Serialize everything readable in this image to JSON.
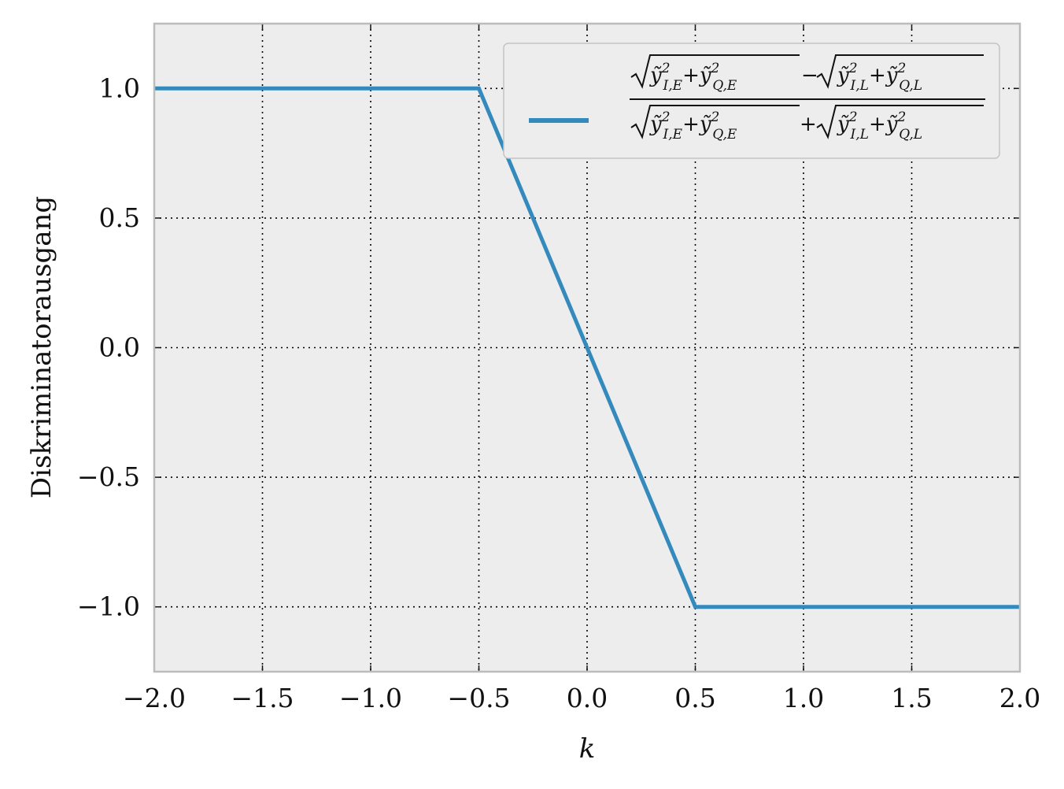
{
  "chart_data": {
    "type": "line",
    "title": "",
    "xlabel": "k",
    "ylabel": "Diskriminatorausgang",
    "xlim": [
      -2.0,
      2.0
    ],
    "ylim": [
      -1.25,
      1.25
    ],
    "xticks": [
      -2.0,
      -1.5,
      -1.0,
      -0.5,
      0.0,
      0.5,
      1.0,
      1.5,
      2.0
    ],
    "xtick_labels": [
      "−2.0",
      "−1.5",
      "−1.0",
      "−0.5",
      "0.0",
      "0.5",
      "1.0",
      "1.5",
      "2.0"
    ],
    "yticks": [
      -1.0,
      -0.5,
      0.0,
      0.5,
      1.0
    ],
    "ytick_labels": [
      "−1.0",
      "−0.5",
      "0.0",
      "0.5",
      "1.0"
    ],
    "grid": true,
    "legend_position": "top-right",
    "series": [
      {
        "name": "(√(ỹ²_{I,E}+ỹ²_{Q,E}) − √(ỹ²_{I,L}+ỹ²_{Q,L})) / (√(ỹ²_{I,E}+ỹ²_{Q,E}) + √(ỹ²_{I,L}+ỹ²_{Q,L}))",
        "color": "#348abd",
        "x": [
          -2.0,
          -0.5,
          0.5,
          2.0
        ],
        "y": [
          1.0,
          1.0,
          -1.0,
          -1.0
        ]
      }
    ]
  },
  "colors": {
    "plot_background": "#ededed",
    "frame": "#bcbcbc",
    "grid": "#000000",
    "line": "#348abd"
  }
}
